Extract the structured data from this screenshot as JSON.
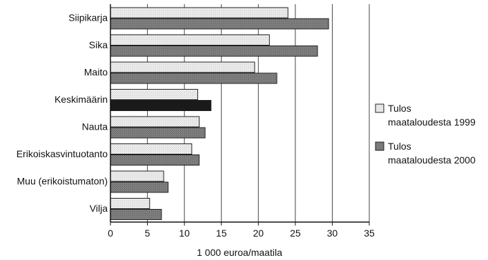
{
  "chart_data": {
    "type": "bar",
    "orientation": "horizontal",
    "title": "",
    "xlabel": "1 000 euroa/maatila",
    "ylabel": "",
    "xlim": [
      0,
      35
    ],
    "xticks": [
      0,
      5,
      10,
      15,
      20,
      25,
      30,
      35
    ],
    "xtick_labels": [
      "0",
      "5",
      "10",
      "15",
      "20",
      "25",
      "30",
      "35"
    ],
    "grid": "vertical",
    "legend_position": "right",
    "categories": [
      "Siipikarja",
      "Sika",
      "Maito",
      "Keskimäärin",
      "Nauta",
      "Erikoiskasvintuotanto",
      "Muu (erikoistumaton)",
      "Vilja"
    ],
    "series": [
      {
        "name": "Tulos maataloudesta 1999",
        "legend_lines": [
          "Tulos",
          "maataloudesta 1999"
        ],
        "color": "#e6e6e6",
        "values": [
          24,
          21.5,
          19.5,
          11.8,
          12,
          11,
          7.2,
          5.3
        ]
      },
      {
        "name": "Tulos maataloudesta 2000",
        "legend_lines": [
          "Tulos",
          "maataloudesta 2000"
        ],
        "color": "#777777",
        "values": [
          29.5,
          28,
          22.5,
          13.6,
          12.8,
          12,
          7.8,
          6.9
        ]
      }
    ],
    "highlight": {
      "category": "Keskimäärin",
      "series_index": 1,
      "color": "#1a1a1a"
    }
  }
}
